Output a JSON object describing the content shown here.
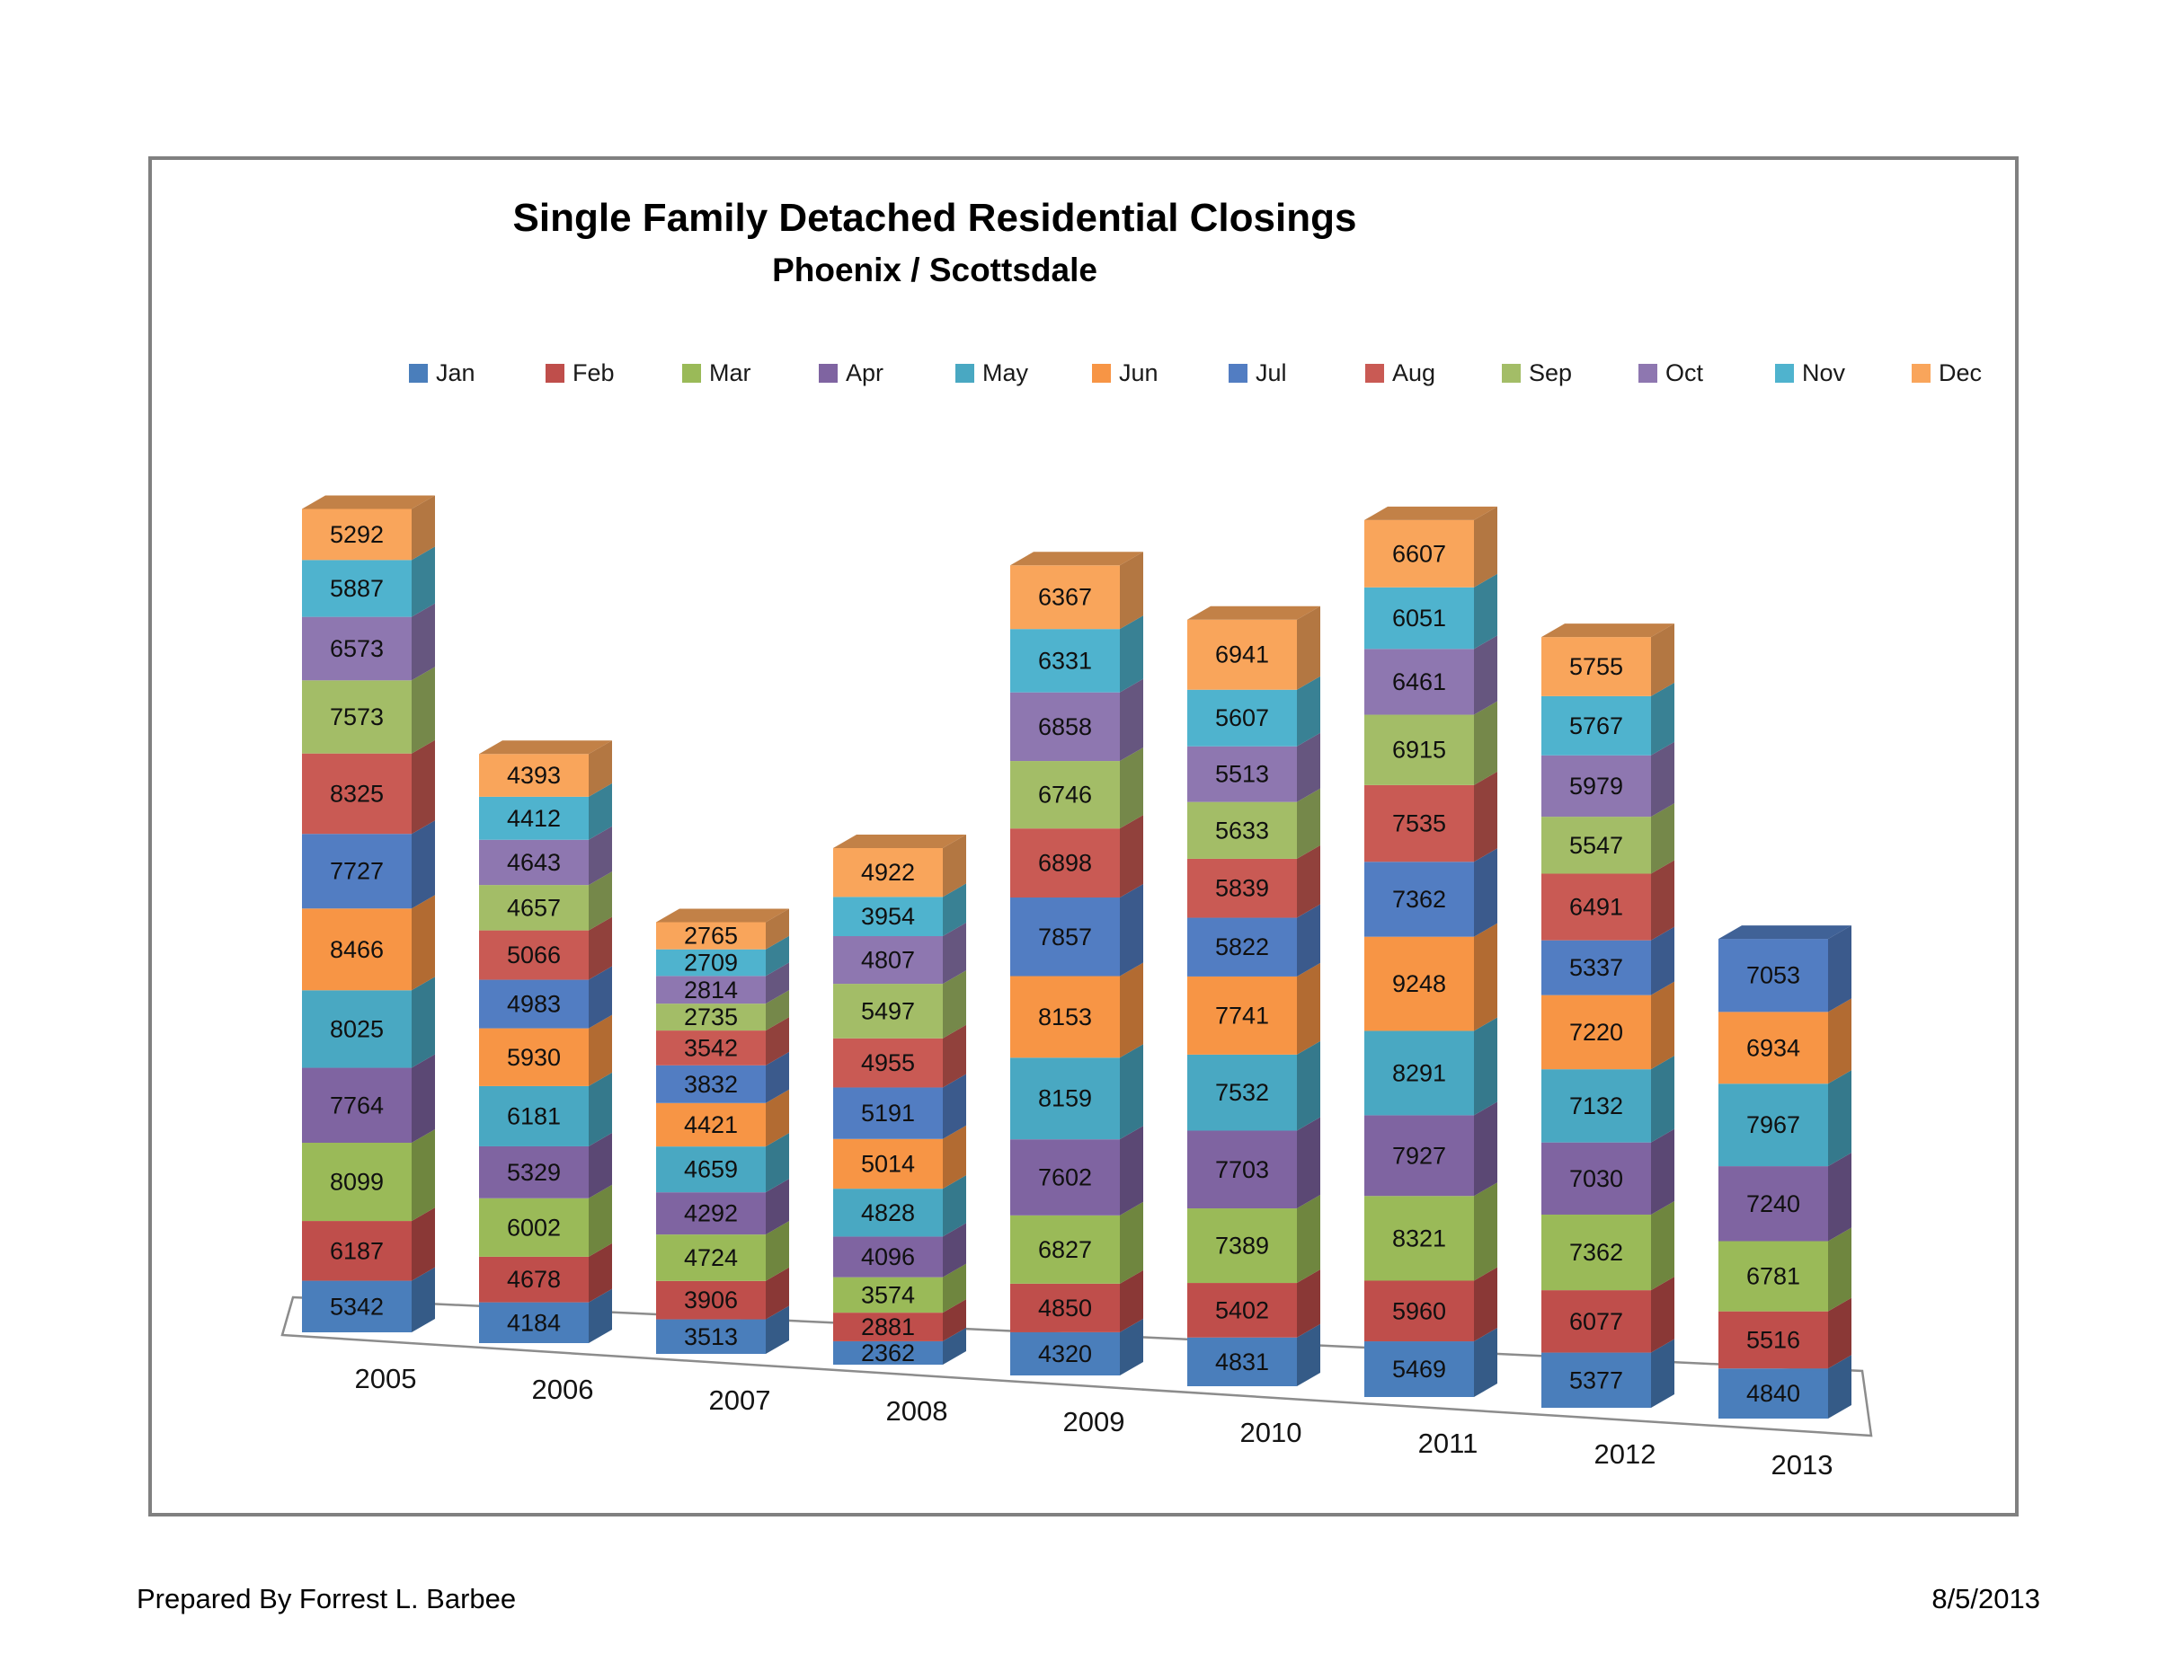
{
  "page": {
    "footer_left": "Prepared By Forrest L. Barbee",
    "footer_right": "8/5/2013"
  },
  "chart_data": {
    "type": "bar",
    "variant": "3d-stacked-column",
    "title": "Single Family Detached Residential Closings",
    "subtitle": "Phoenix / Scottsdale",
    "legend_position": "top",
    "grid": false,
    "value_labels": "inside-segments",
    "categories": [
      "2005",
      "2006",
      "2007",
      "2008",
      "2009",
      "2010",
      "2011",
      "2012",
      "2013"
    ],
    "series": [
      {
        "name": "Jan",
        "color": "#4A7EBB",
        "values": [
          5342,
          4184,
          3513,
          2362,
          4320,
          4831,
          5469,
          5377,
          4840
        ]
      },
      {
        "name": "Feb",
        "color": "#BF4E4B",
        "values": [
          6187,
          4678,
          3906,
          2881,
          4850,
          5402,
          5960,
          6077,
          5516
        ]
      },
      {
        "name": "Mar",
        "color": "#9ABA58",
        "values": [
          8099,
          6002,
          4724,
          3574,
          6827,
          7389,
          8321,
          7362,
          6781
        ]
      },
      {
        "name": "Apr",
        "color": "#7F64A1",
        "values": [
          7764,
          5329,
          4292,
          4096,
          7602,
          7703,
          7927,
          7030,
          7240
        ]
      },
      {
        "name": "May",
        "color": "#49A8C2",
        "values": [
          8025,
          6181,
          4659,
          4828,
          8159,
          7532,
          8291,
          7132,
          7967
        ]
      },
      {
        "name": "Jun",
        "color": "#F79545",
        "values": [
          8466,
          5930,
          4421,
          5014,
          8153,
          7741,
          9248,
          7220,
          6934
        ]
      },
      {
        "name": "Jul",
        "color": "#527DC2",
        "values": [
          7727,
          4983,
          3832,
          5191,
          7857,
          5822,
          7362,
          5337,
          7053
        ]
      },
      {
        "name": "Aug",
        "color": "#C95A54",
        "values": [
          8325,
          5066,
          3542,
          4955,
          6898,
          5839,
          7535,
          6491,
          null
        ]
      },
      {
        "name": "Sep",
        "color": "#A3BD67",
        "values": [
          7573,
          4657,
          2735,
          5497,
          6746,
          5633,
          6915,
          5547,
          null
        ]
      },
      {
        "name": "Oct",
        "color": "#8E77B0",
        "values": [
          6573,
          4643,
          2814,
          4807,
          6858,
          5513,
          6461,
          5979,
          null
        ]
      },
      {
        "name": "Nov",
        "color": "#4FB3CE",
        "values": [
          5887,
          4412,
          2709,
          3954,
          6331,
          5607,
          6051,
          5767,
          null
        ]
      },
      {
        "name": "Dec",
        "color": "#F9A55B",
        "values": [
          5292,
          4393,
          2765,
          4922,
          6367,
          6941,
          6607,
          5755,
          null
        ]
      }
    ],
    "floor_color": "#8C8C8C",
    "label_color": "#101010"
  }
}
